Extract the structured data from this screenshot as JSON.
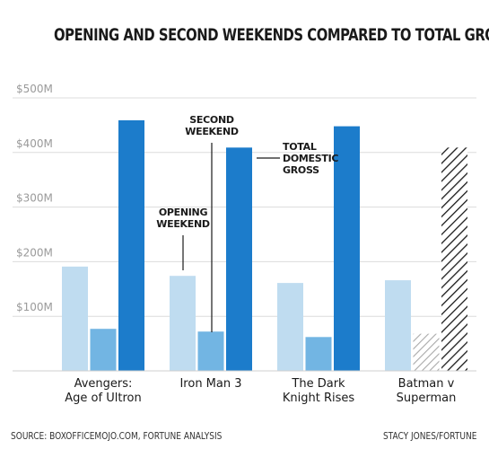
{
  "chart_data": {
    "type": "bar",
    "title": "OPENING AND SECOND WEEKENDS COMPARED TO TOTAL GROSS",
    "categories": [
      [
        "Avengers:",
        "Age of Ultron"
      ],
      [
        "Iron Man 3"
      ],
      [
        "The Dark",
        "Knight Rises"
      ],
      [
        "Batman v",
        "Superman"
      ]
    ],
    "series": [
      {
        "name": "OPENING WEEKEND",
        "values": [
          191,
          174,
          161,
          166
        ],
        "color": "#bfdcf0"
      },
      {
        "name": "SECOND WEEKEND",
        "values": [
          77,
          72,
          62,
          68
        ],
        "color": "#72b5e3",
        "projected_last": true
      },
      {
        "name": "TOTAL DOMESTIC GROSS",
        "values": [
          459,
          409,
          448,
          409
        ],
        "color": "#1c7ccb",
        "projected_last": true
      }
    ],
    "y_ticks": [
      {
        "value": 100,
        "label": "$100M"
      },
      {
        "value": 200,
        "label": "$200M"
      },
      {
        "value": 300,
        "label": "$300M"
      },
      {
        "value": 400,
        "label": "$400M"
      },
      {
        "value": 500,
        "label": "$500M"
      }
    ],
    "ylim": [
      0,
      500
    ],
    "annotations": {
      "opening": [
        "OPENING",
        "WEEKEND"
      ],
      "second": [
        "SECOND",
        "WEEKEND"
      ],
      "total": [
        "TOTAL",
        "DOMESTIC",
        "GROSS"
      ]
    },
    "grid": true
  },
  "footer": {
    "source": "SOURCE: BOXOFFICEMOJO.COM, FORTUNE ANALYSIS",
    "credit": "STACY JONES/FORTUNE"
  }
}
